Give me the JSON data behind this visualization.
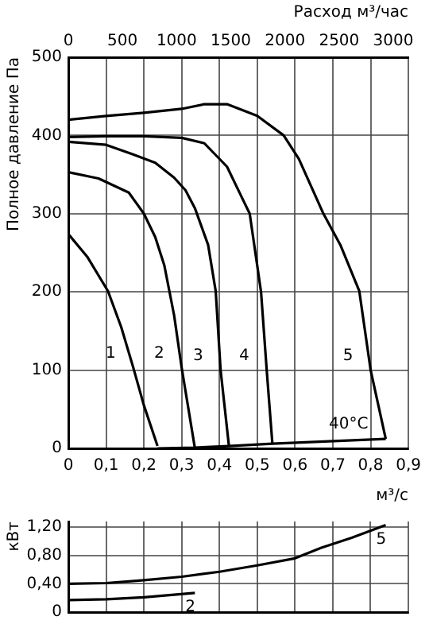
{
  "chart_data": [
    {
      "type": "line",
      "xlabel": "м³/с",
      "ylabel": "Полное давление Па",
      "x2label": "Расход м³/час",
      "xlim": [
        0,
        0.9
      ],
      "xticks": [
        0,
        {
          "value": 0.1,
          "label": "0,1"
        },
        {
          "value": 0.2,
          "label": "0,2"
        },
        {
          "value": 0.3,
          "label": "0,3"
        },
        {
          "value": 0.4,
          "label": "0,4"
        },
        {
          "value": 0.5,
          "label": "0,5"
        },
        {
          "value": 0.6,
          "label": "0,6"
        },
        {
          "value": 0.7,
          "label": "0,7"
        },
        {
          "value": 0.8,
          "label": "0,8"
        },
        {
          "value": 0.9,
          "label": "0,9"
        }
      ],
      "x2lim": [
        0,
        3140
      ],
      "x2ticks": [
        0,
        500,
        1000,
        1500,
        2000,
        2500,
        3000
      ],
      "ylim": [
        0,
        500
      ],
      "yticks": [
        0,
        100,
        200,
        300,
        400,
        500
      ],
      "grid": true,
      "legend": false,
      "marker": "none",
      "line_style": "solid",
      "series": [
        {
          "name": "1",
          "color": "#000000",
          "x": [
            0,
            0.05,
            0.105,
            0.14,
            0.172,
            0.2,
            0.236
          ],
          "values": [
            274,
            245,
            201,
            155,
            103,
            55,
            3
          ]
        },
        {
          "name": "2",
          "color": "#000000",
          "x": [
            0,
            0.08,
            0.16,
            0.2,
            0.23,
            0.254,
            0.28,
            0.3,
            0.335
          ],
          "values": [
            353,
            345,
            327,
            300,
            270,
            234,
            170,
            103,
            0
          ]
        },
        {
          "name": "3",
          "color": "#000000",
          "x": [
            0,
            0.1,
            0.17,
            0.23,
            0.28,
            0.31,
            0.335,
            0.37,
            0.39,
            0.403,
            0.425
          ],
          "values": [
            392,
            388,
            376,
            365,
            346,
            330,
            307,
            260,
            201,
            100,
            3
          ]
        },
        {
          "name": "4",
          "color": "#000000",
          "x": [
            0,
            0.1,
            0.2,
            0.3,
            0.36,
            0.42,
            0.46,
            0.48,
            0.51,
            0.525,
            0.54
          ],
          "values": [
            398,
            399,
            399,
            397,
            390,
            360,
            320,
            300,
            200,
            100,
            6
          ]
        },
        {
          "name": "5",
          "color": "#000000",
          "x": [
            0,
            0.1,
            0.2,
            0.3,
            0.36,
            0.42,
            0.5,
            0.57,
            0.61,
            0.675,
            0.72,
            0.77,
            0.8,
            0.84
          ],
          "values": [
            420,
            425,
            429,
            434,
            440,
            440,
            425,
            400,
            370,
            300,
            260,
            201,
            100,
            12
          ]
        },
        {
          "name": "40°C",
          "color": "#000000",
          "x": [
            0.236,
            0.335,
            0.425,
            0.54,
            0.84
          ],
          "values": [
            0,
            1,
            3,
            6,
            12
          ]
        }
      ]
    },
    {
      "type": "line",
      "ylabel": "кВт",
      "xlim": [
        0,
        0.9
      ],
      "xticks": [
        0,
        0.1,
        0.2,
        0.3,
        0.4,
        0.5,
        0.6,
        0.7,
        0.8,
        0.9
      ],
      "ylim": [
        0,
        1.28
      ],
      "yticks": [
        0,
        {
          "value": 0.4,
          "label": "0,40"
        },
        {
          "value": 0.8,
          "label": "0,80"
        },
        {
          "value": 1.2,
          "label": "1,20"
        }
      ],
      "tick_labels": "y",
      "grid": true,
      "legend": false,
      "marker": "none",
      "line_style": "solid",
      "series": [
        {
          "name": "5",
          "color": "#000000",
          "x": [
            0,
            0.1,
            0.2,
            0.3,
            0.4,
            0.5,
            0.6,
            0.67,
            0.75,
            0.84
          ],
          "values": [
            0.4,
            0.41,
            0.45,
            0.5,
            0.57,
            0.66,
            0.76,
            0.91,
            1.05,
            1.23
          ]
        },
        {
          "name": "2",
          "color": "#000000",
          "x": [
            0,
            0.1,
            0.2,
            0.335
          ],
          "values": [
            0.17,
            0.18,
            0.21,
            0.27
          ]
        }
      ]
    }
  ]
}
